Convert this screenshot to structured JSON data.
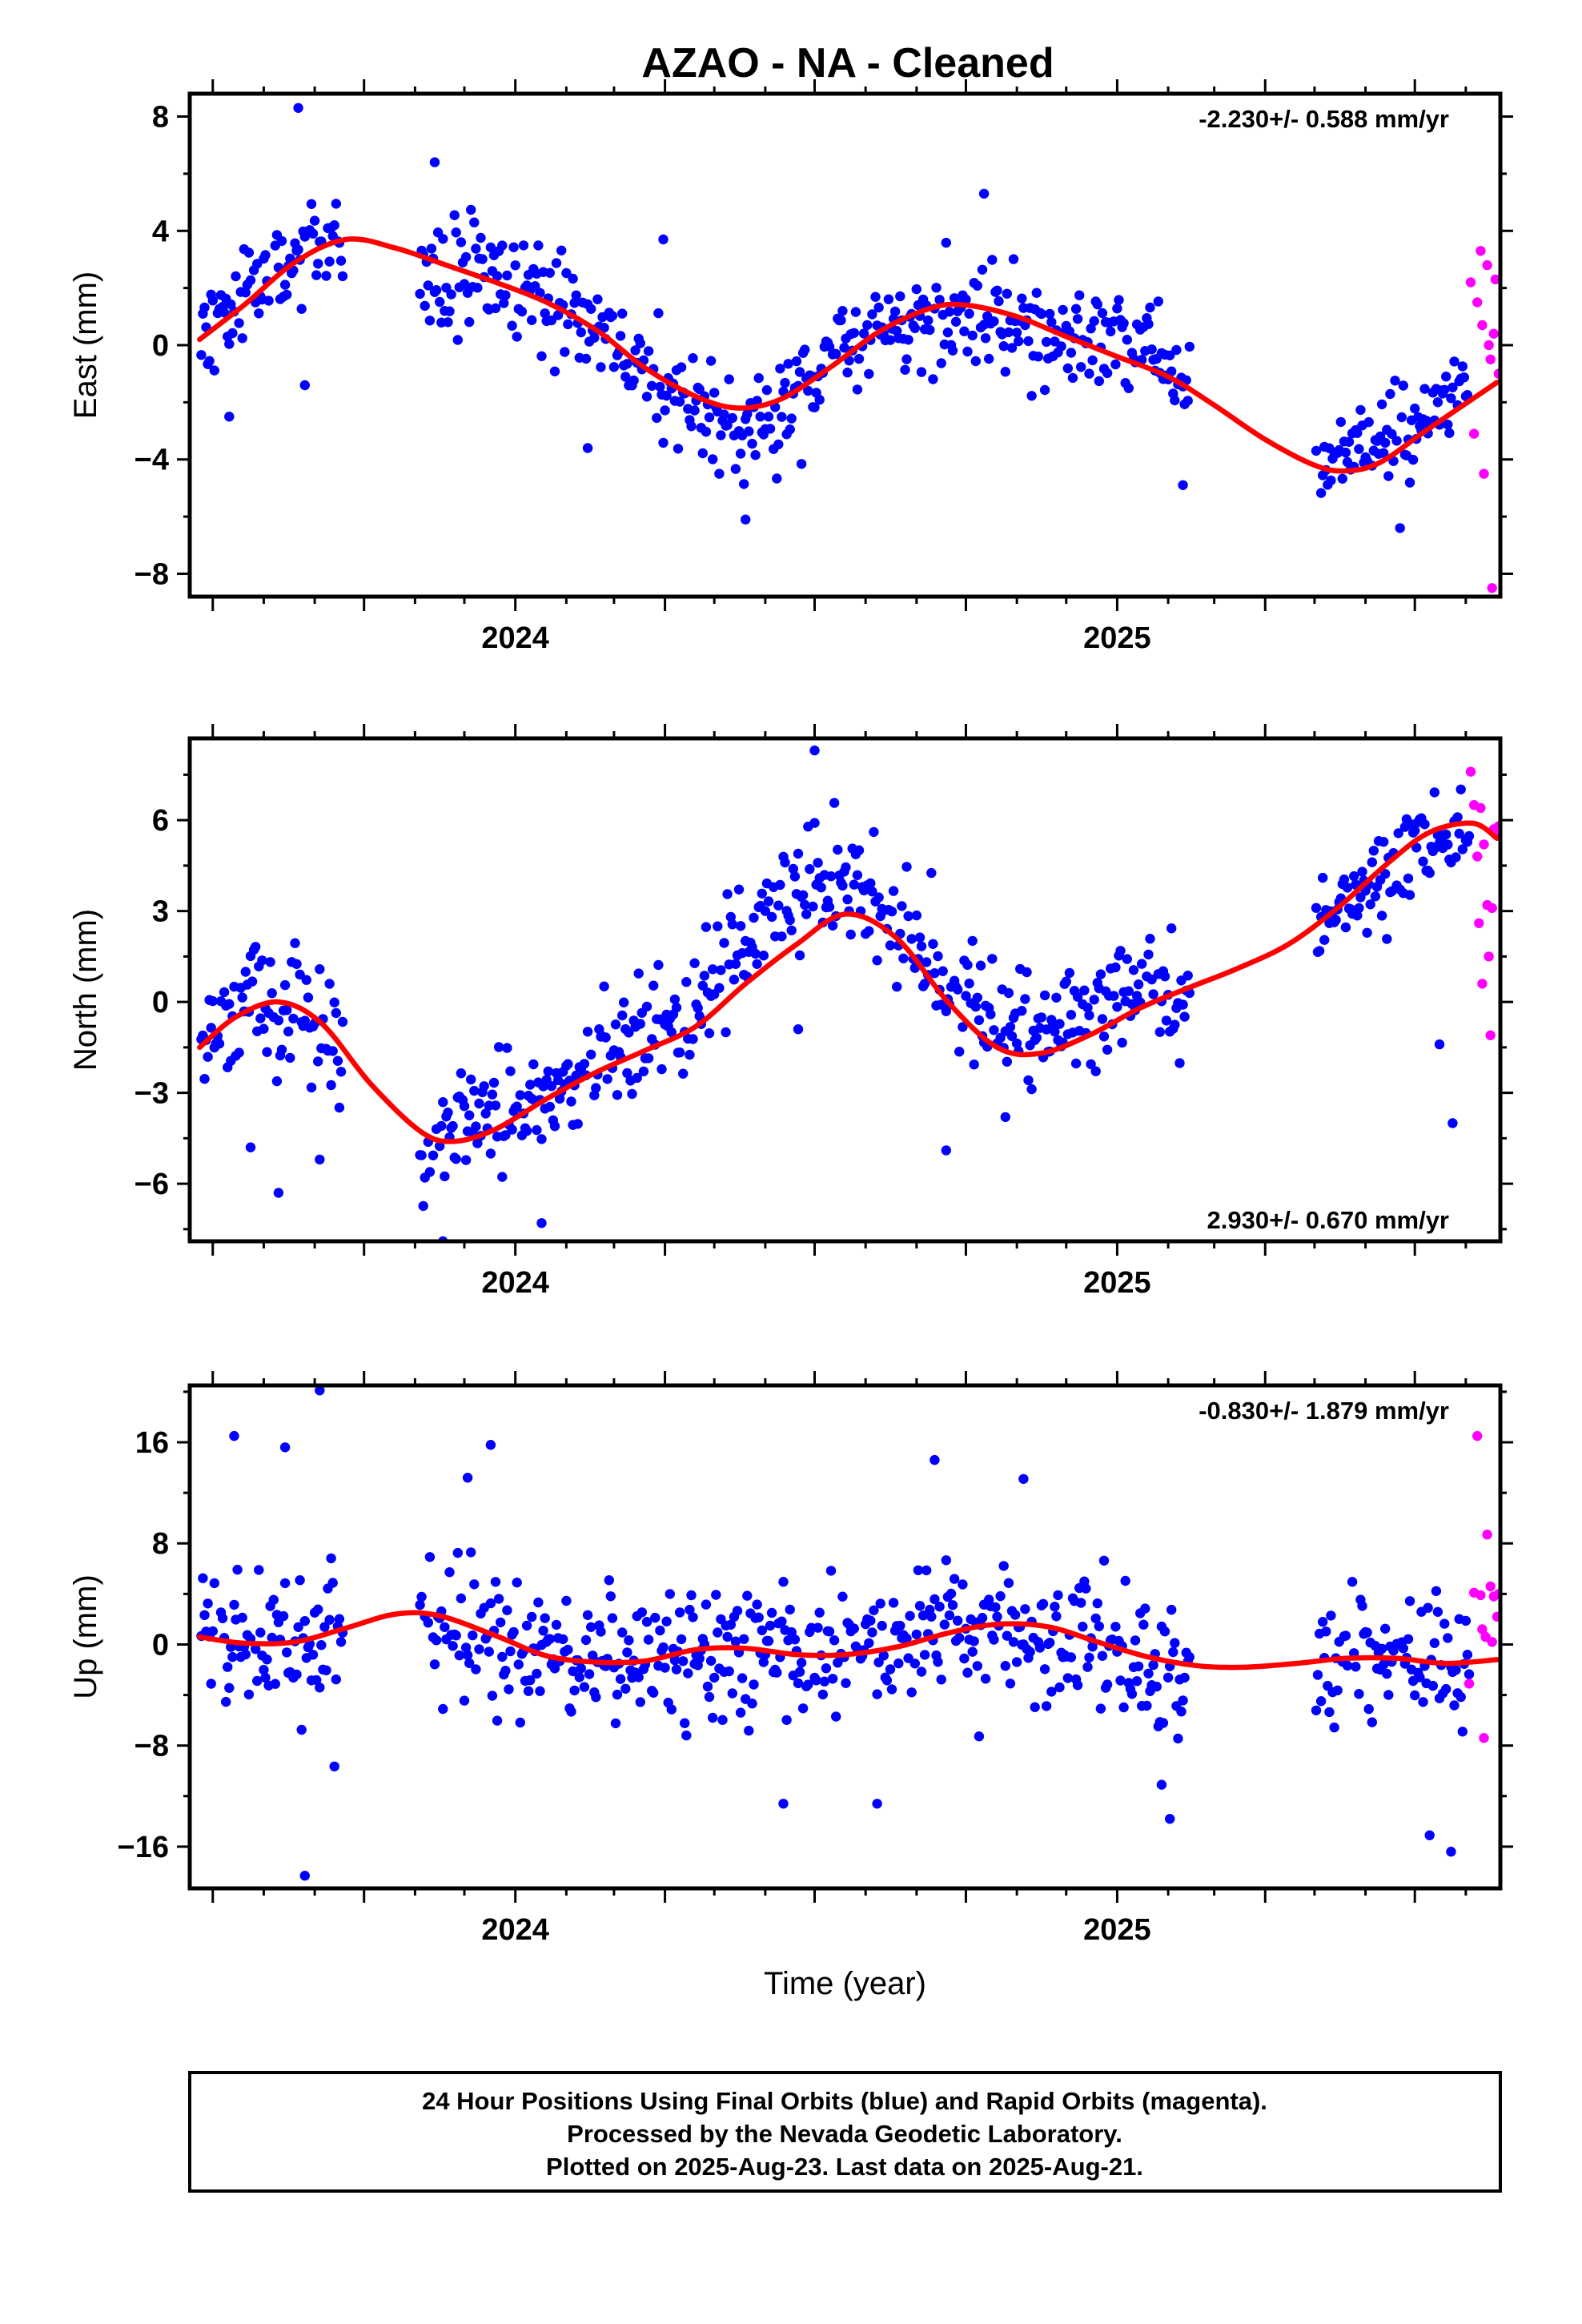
{
  "title": "AZAO  - NA - Cleaned",
  "colors": {
    "final": "#0000ff",
    "rapid": "#ff00ff",
    "fit": "#ff0000",
    "frame": "#000000"
  },
  "caption": {
    "lines": [
      "24 Hour Positions Using Final Orbits (blue) and Rapid Orbits (magenta).",
      "Processed by the Nevada Geodetic Laboratory.",
      "Plotted on 2025-Aug-23. Last data on 2025-Aug-21."
    ]
  },
  "chart_data": [
    {
      "id": "east",
      "type": "scatter",
      "ylabel": "East (mm)",
      "xlabel": "",
      "rate": "-2.230+/- 0.588 mm/yr",
      "rate_position": "top-right",
      "xlim": [
        "2023-06-17",
        "2025-08-22"
      ],
      "ylim": [
        -8.8,
        8.8
      ],
      "yticks": [
        8,
        4,
        0,
        -4,
        -8
      ],
      "xtick_labels": [
        "2024",
        "2025"
      ],
      "gaps": [
        [
          "2023-09-19",
          "2023-11-03"
        ],
        [
          "2025-02-15",
          "2025-05-01"
        ]
      ],
      "fit": [
        [
          "2023-06-23",
          0.2
        ],
        [
          "2023-07-20",
          1.4
        ],
        [
          "2023-08-20",
          2.9
        ],
        [
          "2023-09-20",
          3.7
        ],
        [
          "2023-10-20",
          3.4
        ],
        [
          "2023-11-20",
          2.8
        ],
        [
          "2023-12-20",
          2.2
        ],
        [
          "2024-01-20",
          1.5
        ],
        [
          "2024-02-20",
          0.5
        ],
        [
          "2024-03-20",
          -0.8
        ],
        [
          "2024-04-20",
          -1.8
        ],
        [
          "2024-05-15",
          -2.2
        ],
        [
          "2024-06-10",
          -1.9
        ],
        [
          "2024-07-10",
          -0.8
        ],
        [
          "2024-08-10",
          0.5
        ],
        [
          "2024-09-10",
          1.3
        ],
        [
          "2024-10-01",
          1.4
        ],
        [
          "2024-11-01",
          1.0
        ],
        [
          "2024-12-01",
          0.3
        ],
        [
          "2025-01-01",
          -0.4
        ],
        [
          "2025-02-01",
          -1.1
        ],
        [
          "2025-03-01",
          -2.1
        ],
        [
          "2025-04-01",
          -3.3
        ],
        [
          "2025-05-01",
          -4.2
        ],
        [
          "2025-05-20",
          -4.4
        ],
        [
          "2025-06-10",
          -4.1
        ],
        [
          "2025-07-10",
          -2.9
        ],
        [
          "2025-08-20",
          -1.3
        ]
      ],
      "final": {
        "segments": [
          {
            "from": "2023-06-24",
            "to": "2023-09-18",
            "knots": [
              [
                "2023-06-24",
                0.6
              ],
              [
                "2023-07-20",
                1.6
              ],
              [
                "2023-08-20",
                3.2
              ],
              [
                "2023-09-18",
                3.6
              ]
            ],
            "spread": 1.6,
            "step": 1,
            "seed": 11
          },
          {
            "from": "2023-11-04",
            "to": "2025-02-14",
            "knots": [
              [
                "2023-11-04",
                3.0
              ],
              [
                "2023-12-20",
                2.4
              ],
              [
                "2024-01-20",
                1.3
              ],
              [
                "2024-02-20",
                0.5
              ],
              [
                "2024-03-20",
                -0.9
              ],
              [
                "2024-04-20",
                -2.3
              ],
              [
                "2024-05-15",
                -3.1
              ],
              [
                "2024-06-10",
                -2.1
              ],
              [
                "2024-07-10",
                -0.6
              ],
              [
                "2024-08-10",
                0.4
              ],
              [
                "2024-09-10",
                0.9
              ],
              [
                "2024-10-10",
                1.0
              ],
              [
                "2024-11-10",
                0.6
              ],
              [
                "2024-12-10",
                0.2
              ],
              [
                "2025-01-10",
                -0.3
              ],
              [
                "2025-02-14",
                -1.1
              ]
            ],
            "spread": 1.5,
            "step": 1,
            "seed": 23
          },
          {
            "from": "2025-05-02",
            "to": "2025-08-03",
            "knots": [
              [
                "2025-05-02",
                -4.1
              ],
              [
                "2025-06-01",
                -3.5
              ],
              [
                "2025-07-01",
                -3.0
              ],
              [
                "2025-08-03",
                -1.3
              ]
            ],
            "spread": 1.2,
            "step": 1,
            "seed": 37
          }
        ],
        "outliers": [
          [
            "2023-07-11",
            -2.5
          ],
          [
            "2023-08-22",
            8.3
          ],
          [
            "2023-08-26",
            -1.4
          ],
          [
            "2023-11-13",
            6.4
          ],
          [
            "2024-02-14",
            -3.6
          ],
          [
            "2024-03-31",
            3.7
          ],
          [
            "2024-05-20",
            -6.1
          ],
          [
            "2024-10-12",
            5.3
          ],
          [
            "2025-02-10",
            -4.9
          ],
          [
            "2025-06-22",
            -6.4
          ]
        ]
      },
      "rapid": [
        [
          "2025-08-04",
          2.2
        ],
        [
          "2025-08-06",
          -3.1
        ],
        [
          "2025-08-08",
          1.5
        ],
        [
          "2025-08-10",
          3.3
        ],
        [
          "2025-08-11",
          0.7
        ],
        [
          "2025-08-12",
          -4.5
        ],
        [
          "2025-08-14",
          2.8
        ],
        [
          "2025-08-15",
          0.0
        ],
        [
          "2025-08-16",
          -0.5
        ],
        [
          "2025-08-17",
          -8.5
        ],
        [
          "2025-08-18",
          0.4
        ],
        [
          "2025-08-19",
          2.3
        ],
        [
          "2025-08-21",
          -1.0
        ]
      ]
    },
    {
      "id": "north",
      "type": "scatter",
      "ylabel": "North (mm)",
      "xlabel": "",
      "rate": "2.930+/- 0.670 mm/yr",
      "rate_position": "bottom-right",
      "xlim": [
        "2023-06-17",
        "2025-08-22"
      ],
      "ylim": [
        -7.9,
        8.7
      ],
      "yticks": [
        6,
        3,
        0,
        -3,
        -6
      ],
      "xtick_labels": [
        "2024",
        "2025"
      ],
      "gaps": [
        [
          "2023-09-19",
          "2023-11-03"
        ],
        [
          "2025-02-15",
          "2025-05-01"
        ]
      ],
      "fit": [
        [
          "2023-06-23",
          -1.5
        ],
        [
          "2023-07-15",
          -0.5
        ],
        [
          "2023-08-10",
          0.0
        ],
        [
          "2023-09-05",
          -0.7
        ],
        [
          "2023-10-05",
          -2.7
        ],
        [
          "2023-11-05",
          -4.3
        ],
        [
          "2023-11-25",
          -4.6
        ],
        [
          "2023-12-20",
          -4.2
        ],
        [
          "2024-01-20",
          -3.2
        ],
        [
          "2024-02-20",
          -2.3
        ],
        [
          "2024-03-20",
          -1.6
        ],
        [
          "2024-04-20",
          -0.8
        ],
        [
          "2024-05-20",
          0.6
        ],
        [
          "2024-06-20",
          1.9
        ],
        [
          "2024-07-20",
          2.9
        ],
        [
          "2024-08-20",
          2.1
        ],
        [
          "2024-09-20",
          0.0
        ],
        [
          "2024-10-20",
          -1.5
        ],
        [
          "2024-11-15",
          -1.7
        ],
        [
          "2024-12-15",
          -1.1
        ],
        [
          "2025-01-15",
          -0.2
        ],
        [
          "2025-02-15",
          0.5
        ],
        [
          "2025-03-15",
          1.1
        ],
        [
          "2025-04-15",
          1.9
        ],
        [
          "2025-05-15",
          3.1
        ],
        [
          "2025-06-15",
          4.6
        ],
        [
          "2025-07-10",
          5.6
        ],
        [
          "2025-08-05",
          5.9
        ],
        [
          "2025-08-20",
          5.4
        ]
      ],
      "final": {
        "segments": [
          {
            "from": "2023-06-24",
            "to": "2023-09-18",
            "knots": [
              [
                "2023-06-24",
                -1.2
              ],
              [
                "2023-07-20",
                0.0
              ],
              [
                "2023-08-20",
                0.0
              ],
              [
                "2023-09-18",
                -1.9
              ]
            ],
            "spread": 1.7,
            "step": 1,
            "seed": 51
          },
          {
            "from": "2023-11-04",
            "to": "2025-02-14",
            "knots": [
              [
                "2023-11-04",
                -4.6
              ],
              [
                "2023-12-10",
                -4.3
              ],
              [
                "2024-01-20",
                -3.3
              ],
              [
                "2024-02-20",
                -2.0
              ],
              [
                "2024-03-20",
                -1.2
              ],
              [
                "2024-04-20",
                0.2
              ],
              [
                "2024-05-20",
                1.8
              ],
              [
                "2024-06-20",
                3.3
              ],
              [
                "2024-07-10",
                4.3
              ],
              [
                "2024-08-01",
                3.6
              ],
              [
                "2024-08-20",
                2.1
              ],
              [
                "2024-09-20",
                0.6
              ],
              [
                "2024-10-20",
                -0.9
              ],
              [
                "2024-11-20",
                -1.3
              ],
              [
                "2024-12-20",
                -0.6
              ],
              [
                "2025-01-20",
                0.3
              ],
              [
                "2025-02-14",
                -0.3
              ]
            ],
            "spread": 1.5,
            "step": 1,
            "seed": 67
          },
          {
            "from": "2025-05-02",
            "to": "2025-08-03",
            "knots": [
              [
                "2025-05-02",
                2.3
              ],
              [
                "2025-06-01",
                3.7
              ],
              [
                "2025-07-01",
                5.3
              ],
              [
                "2025-08-03",
                5.6
              ]
            ],
            "spread": 1.2,
            "step": 1,
            "seed": 79
          }
        ],
        "outliers": [
          [
            "2023-07-24",
            -4.8
          ],
          [
            "2023-08-10",
            -6.3
          ],
          [
            "2023-09-04",
            -5.2
          ],
          [
            "2023-11-18",
            -7.9
          ],
          [
            "2024-01-17",
            -7.3
          ],
          [
            "2024-06-21",
            -0.9
          ],
          [
            "2024-07-01",
            8.3
          ],
          [
            "2024-09-19",
            -4.9
          ],
          [
            "2024-10-25",
            -3.8
          ],
          [
            "2025-07-16",
            -1.4
          ],
          [
            "2025-07-24",
            -4.0
          ]
        ]
      },
      "rapid": [
        [
          "2025-08-04",
          7.6
        ],
        [
          "2025-08-06",
          6.5
        ],
        [
          "2025-08-08",
          4.8
        ],
        [
          "2025-08-09",
          2.6
        ],
        [
          "2025-08-10",
          6.4
        ],
        [
          "2025-08-11",
          0.6
        ],
        [
          "2025-08-12",
          5.2
        ],
        [
          "2025-08-14",
          3.2
        ],
        [
          "2025-08-15",
          1.5
        ],
        [
          "2025-08-16",
          -1.1
        ],
        [
          "2025-08-17",
          3.1
        ],
        [
          "2025-08-18",
          5.7
        ],
        [
          "2025-08-20",
          5.5
        ],
        [
          "2025-08-21",
          5.8
        ]
      ]
    },
    {
      "id": "up",
      "type": "scatter",
      "ylabel": "Up (mm)",
      "xlabel": "Time (year)",
      "rate": "-0.830+/- 1.879 mm/yr",
      "rate_position": "top-right",
      "xlim": [
        "2023-06-17",
        "2025-08-22"
      ],
      "ylim": [
        -19.3,
        20.5
      ],
      "yticks": [
        16,
        8,
        0,
        -8,
        -16
      ],
      "xtick_labels": [
        "2024",
        "2025"
      ],
      "gaps": [
        [
          "2023-09-19",
          "2023-11-03"
        ],
        [
          "2025-02-15",
          "2025-05-01"
        ]
      ],
      "fit": [
        [
          "2023-06-23",
          0.6
        ],
        [
          "2023-07-20",
          0.1
        ],
        [
          "2023-08-20",
          0.2
        ],
        [
          "2023-09-20",
          1.3
        ],
        [
          "2023-10-20",
          2.4
        ],
        [
          "2023-11-15",
          2.3
        ],
        [
          "2023-12-20",
          0.7
        ],
        [
          "2024-01-20",
          -0.9
        ],
        [
          "2024-02-20",
          -1.4
        ],
        [
          "2024-03-20",
          -1.3
        ],
        [
          "2024-04-20",
          -0.4
        ],
        [
          "2024-05-20",
          -0.3
        ],
        [
          "2024-06-20",
          -0.8
        ],
        [
          "2024-07-20",
          -0.8
        ],
        [
          "2024-08-20",
          -0.2
        ],
        [
          "2024-09-20",
          0.9
        ],
        [
          "2024-10-20",
          1.6
        ],
        [
          "2024-11-20",
          1.4
        ],
        [
          "2024-12-20",
          0.2
        ],
        [
          "2025-01-20",
          -1.0
        ],
        [
          "2025-02-20",
          -1.7
        ],
        [
          "2025-03-20",
          -1.8
        ],
        [
          "2025-04-20",
          -1.5
        ],
        [
          "2025-05-20",
          -1.1
        ],
        [
          "2025-06-20",
          -1.1
        ],
        [
          "2025-07-20",
          -1.5
        ],
        [
          "2025-08-20",
          -1.2
        ]
      ],
      "final": {
        "segments": [
          {
            "from": "2023-06-24",
            "to": "2023-09-18",
            "knots": [
              [
                "2023-06-24",
                0.0
              ],
              [
                "2023-07-20",
                -1.0
              ],
              [
                "2023-08-20",
                0.0
              ],
              [
                "2023-09-18",
                0.5
              ]
            ],
            "spread": 5.5,
            "step": 1,
            "seed": 97
          },
          {
            "from": "2023-11-04",
            "to": "2025-02-14",
            "knots": [
              [
                "2023-11-04",
                2.0
              ],
              [
                "2023-12-20",
                0.5
              ],
              [
                "2024-01-20",
                -0.8
              ],
              [
                "2024-03-20",
                -1.5
              ],
              [
                "2024-05-20",
                -0.3
              ],
              [
                "2024-07-20",
                -1.0
              ],
              [
                "2024-09-20",
                0.8
              ],
              [
                "2024-10-20",
                1.8
              ],
              [
                "2024-12-20",
                0.0
              ],
              [
                "2025-02-14",
                -1.8
              ]
            ],
            "spread": 4.5,
            "step": 1,
            "seed": 113
          },
          {
            "from": "2025-05-02",
            "to": "2025-08-03",
            "knots": [
              [
                "2025-05-02",
                -0.5
              ],
              [
                "2025-06-10",
                -0.3
              ],
              [
                "2025-07-10",
                -1.6
              ],
              [
                "2025-08-03",
                -1.8
              ]
            ],
            "spread": 4.0,
            "step": 1,
            "seed": 131
          }
        ],
        "outliers": [
          [
            "2023-07-14",
            16.5
          ],
          [
            "2023-08-14",
            15.6
          ],
          [
            "2023-08-26",
            -18.3
          ],
          [
            "2023-09-04",
            20.1
          ],
          [
            "2023-12-03",
            13.2
          ],
          [
            "2023-12-17",
            15.8
          ],
          [
            "2024-06-12",
            -12.6
          ],
          [
            "2024-08-08",
            -12.6
          ],
          [
            "2024-09-12",
            14.6
          ],
          [
            "2024-11-05",
            13.1
          ],
          [
            "2025-01-28",
            -11.1
          ],
          [
            "2025-02-02",
            -13.8
          ],
          [
            "2025-07-10",
            -15.1
          ],
          [
            "2025-07-23",
            -16.4
          ]
        ]
      },
      "rapid": [
        [
          "2025-08-03",
          -3.1
        ],
        [
          "2025-08-06",
          4.1
        ],
        [
          "2025-08-08",
          16.5
        ],
        [
          "2025-08-10",
          3.9
        ],
        [
          "2025-08-11",
          1.2
        ],
        [
          "2025-08-12",
          -7.4
        ],
        [
          "2025-08-13",
          0.6
        ],
        [
          "2025-08-14",
          8.7
        ],
        [
          "2025-08-16",
          4.6
        ],
        [
          "2025-08-17",
          0.2
        ],
        [
          "2025-08-18",
          3.8
        ],
        [
          "2025-08-20",
          2.2
        ],
        [
          "2025-08-21",
          4.0
        ]
      ]
    }
  ]
}
